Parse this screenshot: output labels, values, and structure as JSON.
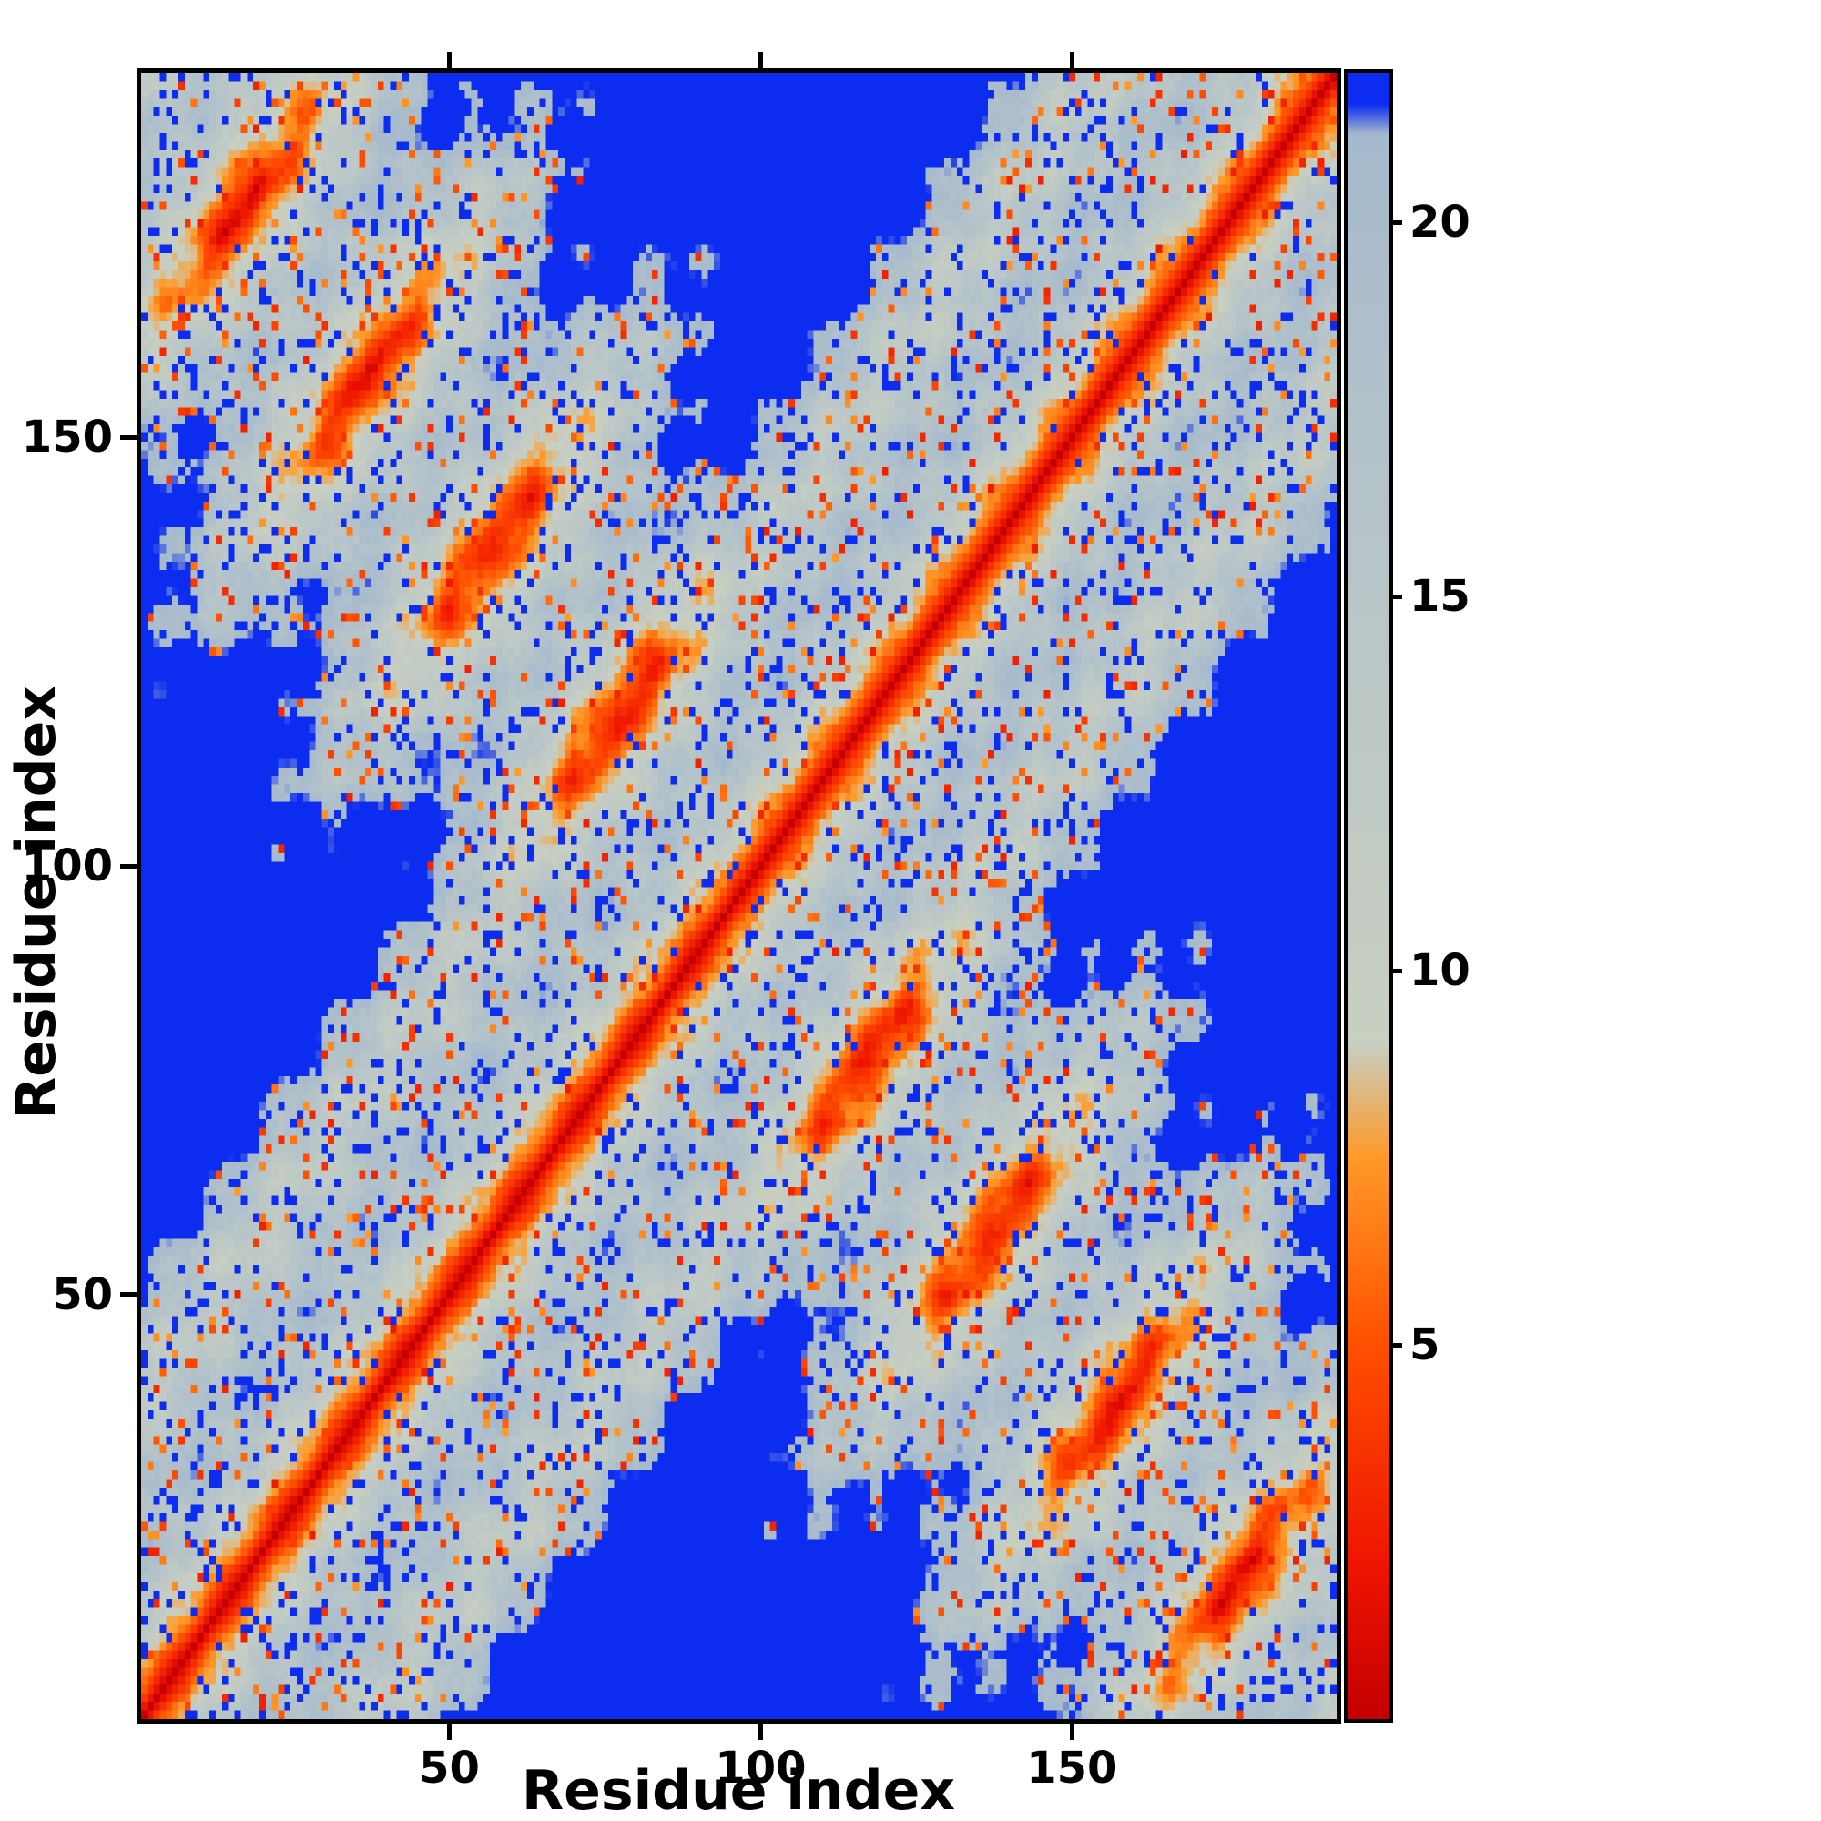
{
  "figure": {
    "background": "#ffffff"
  },
  "chart_data": {
    "type": "heatmap",
    "title": "",
    "xlabel": "Residue index",
    "ylabel": "Residue index",
    "x_ticks": [
      50,
      100,
      150
    ],
    "y_ticks": [
      50,
      100,
      150
    ],
    "x_range": [
      1,
      192
    ],
    "y_range": [
      1,
      192
    ],
    "grid": false,
    "colorbar": {
      "ticks": [
        5,
        10,
        15,
        20
      ],
      "min": 0,
      "max": 22,
      "orientation": "vertical",
      "increasing": "upward",
      "position": "right"
    },
    "colormap_stops": [
      [
        0.0,
        "#c40000"
      ],
      [
        2.0,
        "#ee1400"
      ],
      [
        5.0,
        "#ff5000"
      ],
      [
        7.5,
        "#ff9a28"
      ],
      [
        9.0,
        "#c9cfc1"
      ],
      [
        15.0,
        "#b9c6c8"
      ],
      [
        21.2,
        "#a6bacd"
      ],
      [
        21.6,
        "#0c2cf0"
      ]
    ],
    "background_value_color": "#0c2cf0",
    "matrix_generation": {
      "n": 192,
      "pattern": "symmetric residue-residue distance matrix: hot (red) main diagonal band fading through orange to pale grey, periodic off-diagonal contact rings (period ~40 residues), anti-diagonal cross contacts, pale contacts near the corners, deep blue for distances above the cap",
      "turns": 4.8,
      "radius": 8.5,
      "rise_per_residue": 0.3375,
      "fold": "up-down",
      "wobble_radius": 1.5,
      "wobble_period": 9.3,
      "cap": 21.6,
      "hole_prob": 0.1,
      "hot_speckle_prob": 0.07,
      "noise_seed": 7
    }
  }
}
